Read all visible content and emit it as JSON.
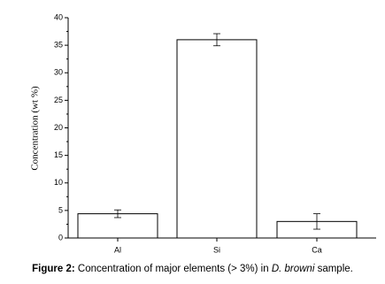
{
  "chart_data": {
    "type": "bar",
    "y_label": "Concentration (wt %)",
    "categories": [
      "Al",
      "Si",
      "Ca"
    ],
    "values": [
      4.4,
      36.0,
      3.0
    ],
    "errors": [
      0.7,
      1.1,
      1.4
    ],
    "color": "#ffffff",
    "ylim": [
      0,
      40
    ],
    "yticks": [
      0,
      5,
      10,
      15,
      20,
      25,
      30,
      35,
      40
    ],
    "grid": false,
    "caption": {
      "label": "Figure 2:",
      "text_before": " Concentration of major elements (> 3%) in ",
      "species": "D. browni",
      "text_after": " sample."
    }
  }
}
